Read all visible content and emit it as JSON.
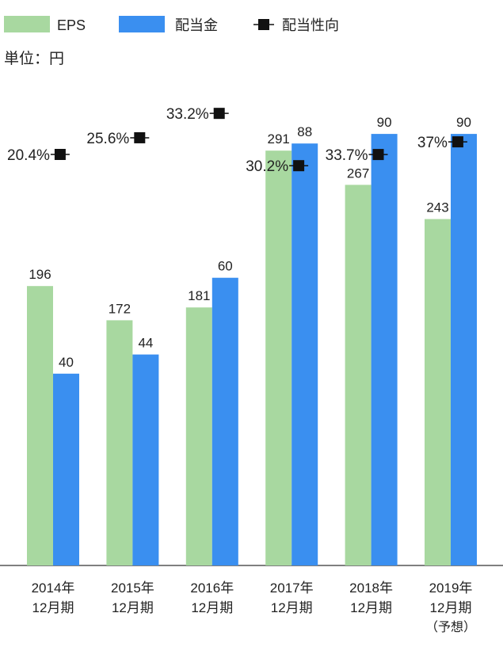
{
  "chart_data": {
    "type": "bar",
    "unit_label": "単位：円",
    "legend": [
      {
        "key": "eps",
        "label": "EPS",
        "color": "#a8d8a0",
        "marker": "swatch"
      },
      {
        "key": "dividend",
        "label": "配当金",
        "color": "#3a8ff0",
        "marker": "swatch"
      },
      {
        "key": "payout",
        "label": "配当性向",
        "color": "#111111",
        "marker": "square-line"
      }
    ],
    "categories": [
      {
        "year": "2014年",
        "period": "12月期",
        "note": ""
      },
      {
        "year": "2015年",
        "period": "12月期",
        "note": ""
      },
      {
        "year": "2016年",
        "period": "12月期",
        "note": ""
      },
      {
        "year": "2017年",
        "period": "12月期",
        "note": ""
      },
      {
        "year": "2018年",
        "period": "12月期",
        "note": ""
      },
      {
        "year": "2019年",
        "period": "12月期",
        "note": "（予想）"
      }
    ],
    "series": [
      {
        "name": "EPS",
        "key": "eps",
        "axis": "left",
        "values": [
          196,
          172,
          181,
          291,
          267,
          243
        ]
      },
      {
        "name": "配当金",
        "key": "dividend",
        "axis": "right",
        "values": [
          40,
          44,
          60,
          88,
          90,
          90
        ]
      }
    ],
    "payout_ratio": {
      "name": "配当性向",
      "values": [
        20.4,
        25.6,
        33.2,
        30.2,
        33.7,
        37
      ],
      "labels": [
        "20.4%",
        "25.6%",
        "33.2%",
        "30.2%",
        "33.7%",
        "37%"
      ]
    },
    "axes": {
      "eps_range": [
        0,
        370
      ],
      "dividend_range": [
        0,
        110
      ]
    }
  }
}
